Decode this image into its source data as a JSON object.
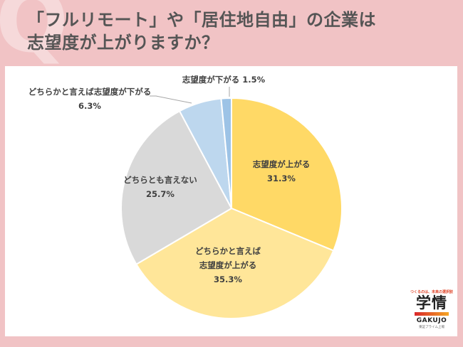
{
  "header": {
    "q_mark": "Q",
    "title_line1": "「フルリモート」や「居住地自由」の企業は",
    "title_line2": "志望度が上がりますか？"
  },
  "chart_data": {
    "type": "pie",
    "title": "「フルリモート」や「居住地自由」の企業は志望度が上がりますか？",
    "start_angle_deg": 0,
    "direction": "clockwise",
    "categories": [
      "志望度が上がる",
      "どちらかと言えば志望度が上がる",
      "どちらとも言えない",
      "どちらかと言えば志望度が下がる",
      "志望度が下がる"
    ],
    "values": [
      31.3,
      35.3,
      25.7,
      6.3,
      1.5
    ],
    "colors": [
      "#ffd966",
      "#ffe699",
      "#d9d9d9",
      "#bdd7ee",
      "#9dc3e6"
    ],
    "unit": "%",
    "legend": "none (data labels)"
  },
  "labels": {
    "s0_name": "志望度が上がる",
    "s0_value": "31.3%",
    "s1_name_l1": "どちらかと言えば",
    "s1_name_l2": "志望度が上がる",
    "s1_value": "35.3%",
    "s2_name": "どちらとも言えない",
    "s2_value": "25.7%",
    "s3_name": "どちらかと言えば志望度が下がる",
    "s3_value": "6.3%",
    "s4_full": "志望度が下がる 1.5%"
  },
  "logo": {
    "tagline": "つくるのは、未来の選択肢",
    "kanji": "学情",
    "name": "GAKUJO",
    "sub": "東証プライム上場"
  }
}
